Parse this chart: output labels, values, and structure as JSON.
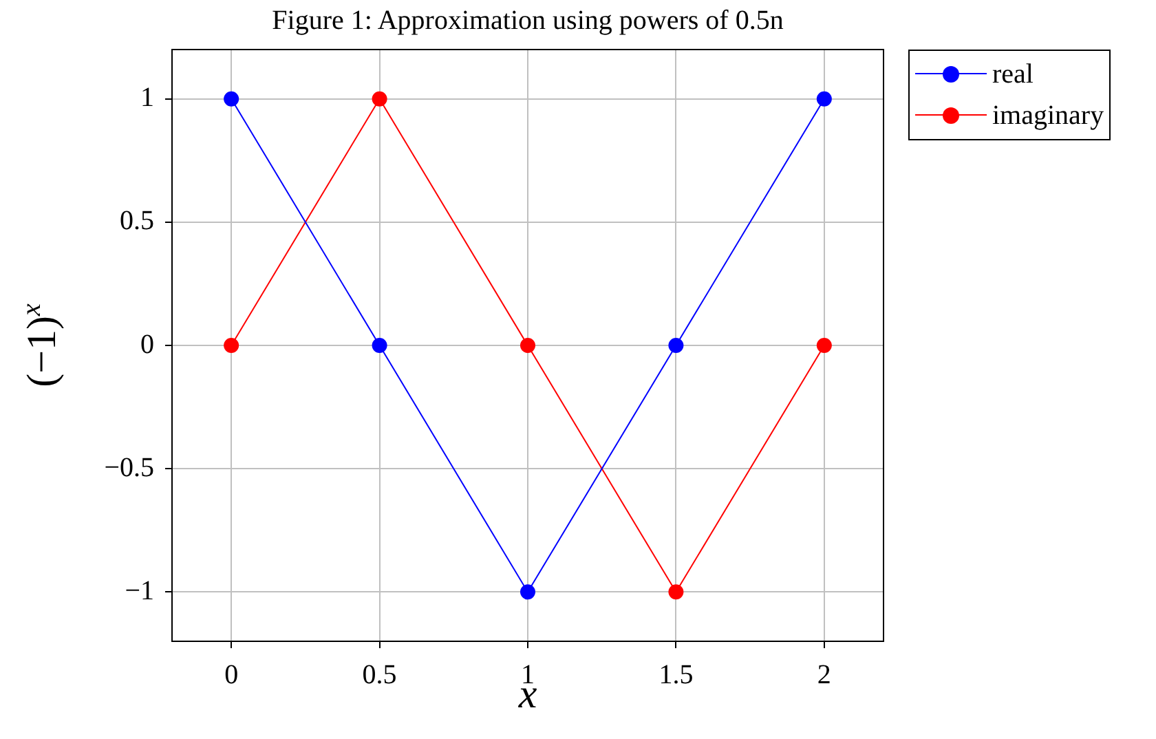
{
  "chart_data": {
    "type": "line",
    "title": "Figure 1: Approximation using powers of 0.5n",
    "xlabel": "x",
    "ylabel": "(−1)$^{x}$",
    "x": [
      0,
      0.5,
      1,
      1.5,
      2
    ],
    "series": [
      {
        "name": "real",
        "color": "#0000ff",
        "values": [
          1,
          0,
          -1,
          0,
          1
        ]
      },
      {
        "name": "imaginary",
        "color": "#ff0000",
        "values": [
          0,
          1,
          0,
          -1,
          0
        ]
      }
    ],
    "xlim": [
      -0.2,
      2.2
    ],
    "ylim": [
      -1.2,
      1.2
    ],
    "xticks": [
      0,
      0.5,
      1,
      1.5,
      2
    ],
    "yticks": [
      {
        "value": -1,
        "label": "−1"
      },
      {
        "value": -0.5,
        "label": "−0.5"
      },
      0,
      0.5,
      1
    ],
    "grid": true,
    "legend": "top right",
    "marker": "circle",
    "line_style": "solid"
  }
}
